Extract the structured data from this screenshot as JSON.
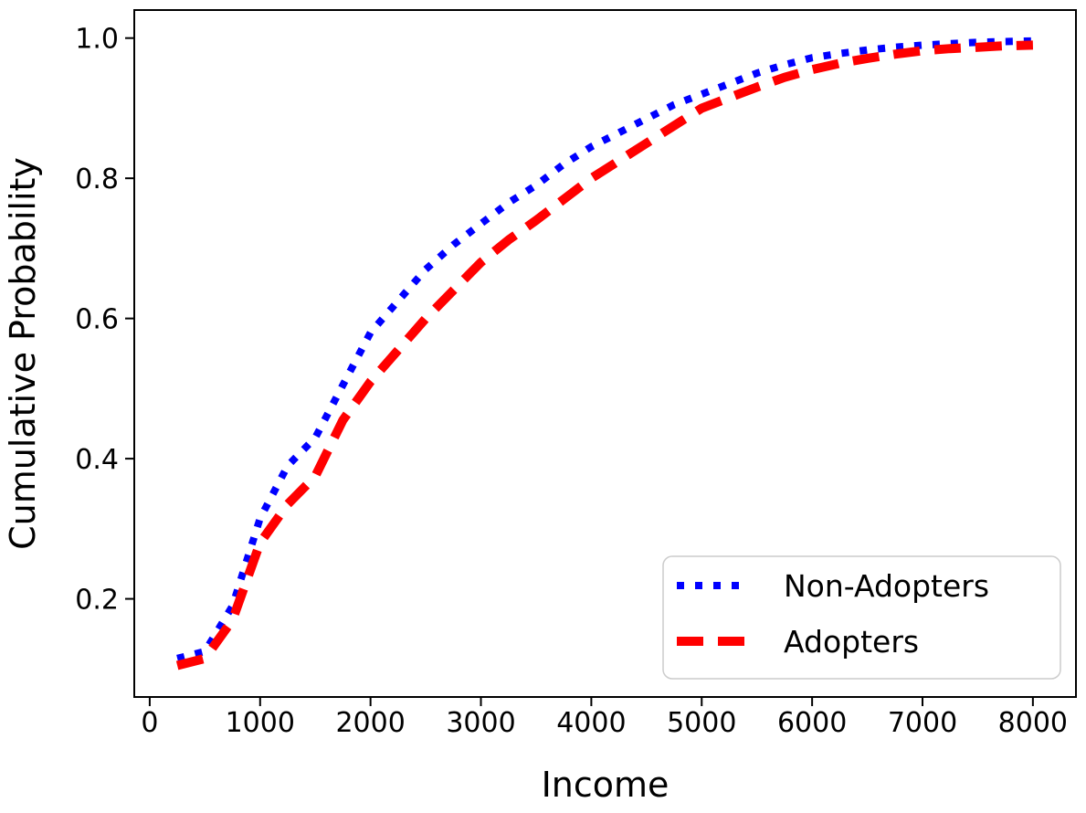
{
  "chart_data": {
    "type": "line",
    "title": "",
    "xlabel": "Income",
    "ylabel": "Cumulative Probability",
    "xlim": [
      -140,
      8390
    ],
    "ylim": [
      0.06,
      1.04
    ],
    "xticks": [
      0,
      1000,
      2000,
      3000,
      4000,
      5000,
      6000,
      7000,
      8000
    ],
    "yticks": [
      0.2,
      0.4,
      0.6,
      0.8,
      1.0
    ],
    "grid": false,
    "background": "#ffffff",
    "legend_position": "lower right",
    "x": [
      250,
      500,
      750,
      1000,
      1250,
      1500,
      1750,
      2000,
      2250,
      2500,
      2750,
      3000,
      3250,
      3500,
      3750,
      4000,
      4250,
      4500,
      4750,
      5000,
      5250,
      5500,
      5750,
      6000,
      6250,
      6500,
      6750,
      7000,
      7250,
      7500,
      7750,
      8000
    ],
    "series": [
      {
        "name": "Non-Adopters",
        "color": "#0000ff",
        "style": "dotted",
        "line_width": 8,
        "values": [
          0.115,
          0.125,
          0.19,
          0.315,
          0.39,
          0.43,
          0.505,
          0.58,
          0.625,
          0.67,
          0.705,
          0.735,
          0.765,
          0.79,
          0.82,
          0.845,
          0.865,
          0.885,
          0.905,
          0.92,
          0.935,
          0.95,
          0.962,
          0.972,
          0.978,
          0.983,
          0.987,
          0.99,
          0.992,
          0.994,
          0.995,
          0.996
        ]
      },
      {
        "name": "Adopters",
        "color": "#ff0000",
        "style": "dashed",
        "line_width": 10,
        "values": [
          0.105,
          0.115,
          0.17,
          0.28,
          0.335,
          0.375,
          0.455,
          0.51,
          0.555,
          0.6,
          0.64,
          0.68,
          0.712,
          0.74,
          0.77,
          0.8,
          0.825,
          0.85,
          0.875,
          0.9,
          0.915,
          0.93,
          0.944,
          0.955,
          0.964,
          0.971,
          0.977,
          0.982,
          0.985,
          0.987,
          0.989,
          0.99
        ]
      }
    ]
  },
  "layout_colors": {
    "axis": "#000000",
    "legend_border": "#cccccc"
  }
}
